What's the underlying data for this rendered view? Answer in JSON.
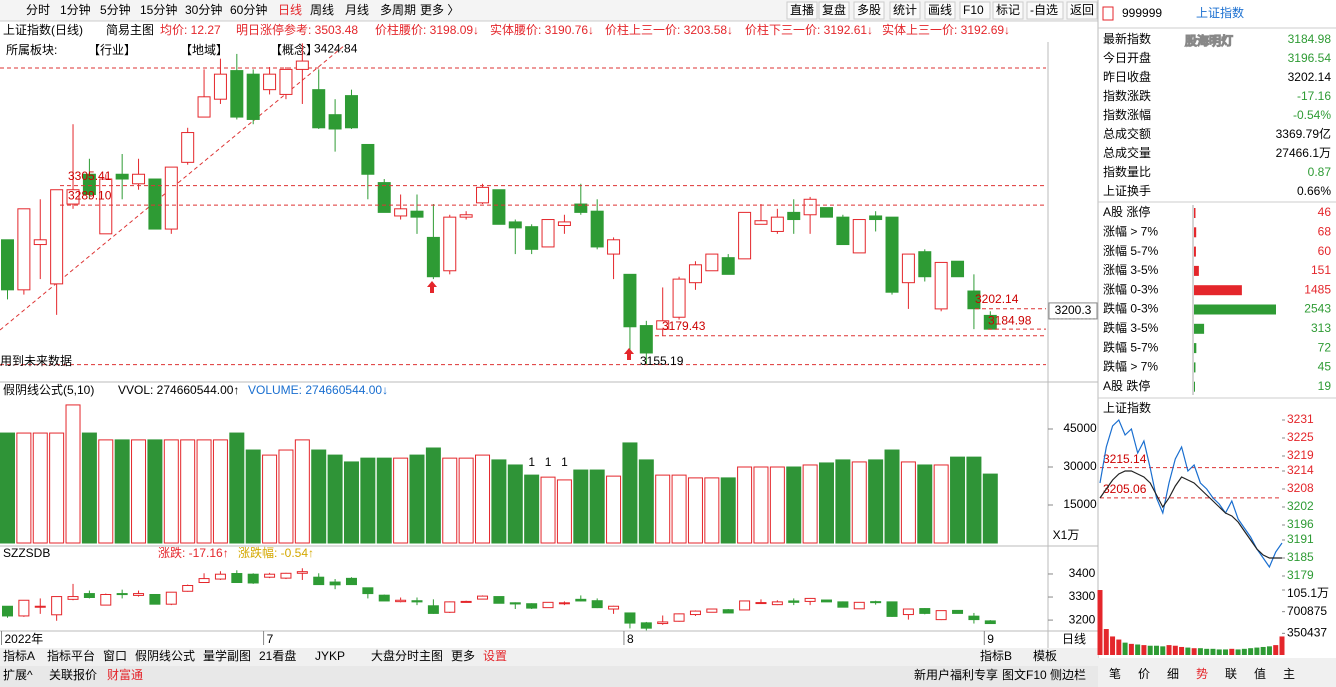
{
  "toolbar": {
    "tabs": [
      "分时",
      "1分钟",
      "5分钟",
      "15分钟",
      "30分钟",
      "60分钟",
      "日线",
      "周线",
      "月线",
      "多周期",
      "更多 〉"
    ],
    "buttons": [
      "直播",
      "复盘",
      "多股",
      "统计",
      "画线",
      "F10",
      "标记",
      "-自选",
      "返回"
    ]
  },
  "info": {
    "items": [
      "上证指数(日线)",
      "简易主图",
      "均价: 12.27",
      "明日涨停参考: 3503.48",
      "价柱腰价: 3198.09↓",
      "实体腰价: 3190.76↓",
      "价柱上三一价: 3203.58↓",
      "价柱下三一价: 3192.61↓",
      "实体上三一价: 3192.69↓"
    ],
    "sectors": [
      "所属板块:",
      "【行业】",
      "【地域】",
      "【概念】"
    ]
  },
  "chart_data": [
    {
      "type": "candlestick",
      "note": "用到未来数据",
      "ylim": [
        3144,
        3426
      ],
      "price_tag": 3200.3,
      "period": "日线",
      "categories": [
        "2022年",
        null,
        null,
        null,
        null,
        null,
        null,
        null,
        null,
        null,
        null,
        null,
        null,
        null,
        null,
        null,
        "7",
        null,
        null,
        null,
        null,
        null,
        null,
        null,
        null,
        null,
        null,
        null,
        null,
        null,
        null,
        null,
        null,
        null,
        null,
        null,
        null,
        null,
        "8",
        null,
        null,
        null,
        null,
        null,
        null,
        null,
        null,
        null,
        null,
        null,
        null,
        null,
        null,
        null,
        null,
        null,
        null,
        null,
        null,
        null,
        "9"
      ],
      "candles": [
        [
          3260,
          3218,
          3260,
          3210
        ],
        [
          3218,
          3286,
          3286,
          3214
        ],
        [
          3256,
          3260,
          3294,
          3227
        ],
        [
          3223,
          3302,
          3302,
          3197
        ],
        [
          3290,
          3302,
          3357,
          3286
        ],
        [
          3315,
          3298,
          3328,
          3294
        ],
        [
          3265,
          3311,
          3315,
          3265
        ],
        [
          3315,
          3311,
          3332,
          3294
        ],
        [
          3307,
          3315,
          3328,
          3302
        ],
        [
          3311,
          3269,
          3311,
          3269
        ],
        [
          3269,
          3321,
          3321,
          3265
        ],
        [
          3325,
          3350,
          3354,
          3323
        ],
        [
          3363,
          3380,
          3403,
          3363
        ],
        [
          3378,
          3399,
          3412,
          3374
        ],
        [
          3402,
          3363,
          3416,
          3361
        ],
        [
          3399,
          3361,
          3403,
          3357
        ],
        [
          3386,
          3399,
          3405,
          3382
        ],
        [
          3382,
          3403,
          3405,
          3378
        ],
        [
          3403,
          3410,
          3424.84,
          3374
        ],
        [
          3386,
          3354,
          3403,
          3353
        ],
        [
          3365,
          3353,
          3378,
          3334
        ],
        [
          3381,
          3354,
          3386,
          3353
        ],
        [
          3340,
          3315,
          3340,
          3294
        ],
        [
          3308,
          3283,
          3311,
          3283
        ],
        [
          3280,
          3286,
          3298,
          3277
        ],
        [
          3284,
          3279,
          3298,
          3265
        ],
        [
          3262,
          3229,
          3290,
          3227
        ],
        [
          3234,
          3279,
          3281,
          3231
        ],
        [
          3279,
          3281,
          3284,
          3277
        ],
        [
          3291,
          3304,
          3307,
          3290
        ],
        [
          3302,
          3273,
          3302,
          3273
        ],
        [
          3275,
          3270,
          3277,
          3248
        ],
        [
          3271,
          3252,
          3273,
          3248
        ],
        [
          3254,
          3277,
          3277,
          3254
        ],
        [
          3272,
          3275,
          3281,
          3265
        ],
        [
          3290,
          3283,
          3307,
          3281
        ],
        [
          3284,
          3254,
          3294,
          3252
        ],
        [
          3248,
          3260,
          3262,
          3227
        ],
        [
          3231,
          3187,
          3231,
          3164
        ],
        [
          3188,
          3165,
          3192,
          3155.19
        ],
        [
          3185,
          3192,
          3220,
          3179.43
        ],
        [
          3195,
          3227,
          3229,
          3193
        ],
        [
          3224,
          3239,
          3242,
          3218
        ],
        [
          3234,
          3248,
          3248,
          3234
        ],
        [
          3245,
          3231,
          3248,
          3231
        ],
        [
          3244,
          3283,
          3283,
          3244
        ],
        [
          3273,
          3276,
          3290,
          3273
        ],
        [
          3267,
          3279,
          3286,
          3265
        ],
        [
          3283,
          3277,
          3294,
          3265
        ],
        [
          3281,
          3294,
          3296,
          3265
        ],
        [
          3287,
          3279,
          3287,
          3279
        ],
        [
          3279,
          3256,
          3281,
          3256
        ],
        [
          3249,
          3277,
          3277,
          3249
        ],
        [
          3280,
          3277,
          3284,
          3267
        ],
        [
          3279,
          3216,
          3279,
          3214
        ],
        [
          3224,
          3248,
          3248,
          3202
        ],
        [
          3250,
          3229,
          3252,
          3225
        ],
        [
          3202,
          3241,
          3241,
          3200
        ],
        [
          3242,
          3229,
          3242,
          3229
        ],
        [
          3217,
          3202.14,
          3231,
          3185
        ],
        [
          3196.54,
          3184.98,
          3200,
          3184.98
        ]
      ],
      "annotations": [
        {
          "value": 3305.41,
          "label": "3305.41"
        },
        {
          "value": 3289.1,
          "label": "3289.10"
        },
        {
          "value": 3424.84,
          "label": "3424.84"
        },
        {
          "value": 3202.14,
          "label": "3202.14"
        },
        {
          "value": 3184.98,
          "label": "3184.98"
        },
        {
          "value": 3179.43,
          "label": "3179.43"
        },
        {
          "value": 3155.19,
          "label": "3155.19"
        }
      ]
    },
    {
      "type": "bar",
      "title": "假阴线公式(5,10)",
      "legend": [
        "VVOL: 274660544.00↑",
        "VOLUME: 274660544.00↓"
      ],
      "unit_label": "X1万",
      "ylim": [
        0,
        60000
      ],
      "yticks": [
        45000,
        30000,
        15000
      ],
      "marks": [
        "1",
        "1",
        "1"
      ],
      "values": [
        43400,
        43400,
        43400,
        43400,
        54500,
        43400,
        40700,
        40700,
        40700,
        40700,
        40700,
        40700,
        40700,
        40700,
        43400,
        36700,
        34700,
        36700,
        40700,
        36700,
        34700,
        32000,
        33500,
        33500,
        33500,
        34700,
        37500,
        33500,
        33500,
        34700,
        32800,
        30800,
        26800,
        26000,
        24900,
        28800,
        28800,
        26400,
        39500,
        32800,
        26800,
        26800,
        25700,
        25700,
        25700,
        30000,
        30000,
        30000,
        30000,
        30800,
        31600,
        32800,
        32000,
        32800,
        36700,
        32000,
        30800,
        30800,
        33900,
        33900,
        27200
      ]
    },
    {
      "type": "candlestick",
      "title": "SZZSDB",
      "legend": [
        "涨跌: -17.16↑",
        "涨跌幅: -0.54↑"
      ],
      "ylim": [
        3157,
        3504
      ],
      "yticks": [
        3400,
        3300,
        3200
      ]
    }
  ],
  "bottom": {
    "tabs": [
      "指标A",
      "指标平台",
      "窗口",
      "假阴线公式",
      "量学副图",
      "21看盘",
      "JYKP",
      "大盘分时主图",
      "更多",
      "设置"
    ],
    "tabs_right": [
      "指标B",
      "模板"
    ],
    "status": [
      "扩展^",
      "关联报价",
      "财富通"
    ],
    "status_right": [
      "新用户福利专享",
      "图文F10",
      "侧边栏"
    ]
  },
  "quote_panel": {
    "code": "999999",
    "name": "上证指数",
    "watermark": "股海明灯",
    "quotes": [
      {
        "label": "最新指数",
        "value": 3184.98
      },
      {
        "label": "今日开盘",
        "value": 3196.54
      },
      {
        "label": "昨日收盘",
        "value": 3202.14
      },
      {
        "label": "指数涨跌",
        "value": -17.16
      },
      {
        "label": "指数涨幅",
        "value": "-0.54%"
      },
      {
        "label": "总成交额",
        "value": "3369.79亿"
      },
      {
        "label": "总成交量",
        "value": "27466.1万"
      },
      {
        "label": "指数量比",
        "value": 0.87
      },
      {
        "label": "上证换手",
        "value": "0.66%"
      }
    ],
    "breadth": [
      {
        "label": "A股 涨停",
        "count": 46
      },
      {
        "label": "涨幅 > 7%",
        "count": 68
      },
      {
        "label": "涨幅 5-7%",
        "count": 60
      },
      {
        "label": "涨幅 3-5%",
        "count": 151
      },
      {
        "label": "涨幅 0-3%",
        "count": 1485
      },
      {
        "label": "跌幅 0-3%",
        "count": 2543
      },
      {
        "label": "跌幅 3-5%",
        "count": 313
      },
      {
        "label": "跌幅 5-7%",
        "count": 72
      },
      {
        "label": "跌幅 > 7%",
        "count": 45
      },
      {
        "label": "A股 跌停",
        "count": 19
      }
    ],
    "mini": {
      "title": "上证指数",
      "ylim": [
        3179,
        3231
      ],
      "yticks": [
        3231,
        3225,
        3219,
        3214,
        3208,
        3202,
        3196,
        3191,
        3185,
        3179
      ],
      "levels": [
        3215.14,
        3205.06
      ],
      "price": [
        3210,
        3222,
        3229,
        3231,
        3226,
        3228,
        3220,
        3224,
        3215,
        3205,
        3200,
        3210,
        3218,
        3222,
        3214,
        3216,
        3210,
        3208,
        3205,
        3203,
        3200,
        3204,
        3198,
        3195,
        3192,
        3188,
        3185,
        3182,
        3187,
        3190
      ],
      "avg": [
        3205,
        3208,
        3211,
        3213,
        3214,
        3214,
        3213,
        3212,
        3210,
        3206,
        3202,
        3205,
        3209,
        3212,
        3211,
        3210,
        3208,
        3206,
        3204,
        3202,
        3200,
        3199,
        3197,
        3194,
        3191,
        3188,
        3186,
        3185,
        3185,
        3185
      ],
      "vol_ylim": [
        0,
        1051312
      ],
      "vol_ticks": [
        {
          "value": 1051312,
          "label": "105.1万"
        },
        700875,
        350437
      ],
      "volume": [
        1051000,
        420000,
        300000,
        250000,
        200000,
        180000,
        170000,
        160000,
        150000,
        150000,
        140000,
        160000,
        150000,
        130000,
        120000,
        110000,
        110000,
        100000,
        100000,
        90000,
        90000,
        100000,
        90000,
        100000,
        110000,
        120000,
        130000,
        140000,
        160000,
        300000
      ]
    },
    "tabs": [
      "笔",
      "价",
      "细",
      "势",
      "联",
      "值",
      "主"
    ]
  }
}
